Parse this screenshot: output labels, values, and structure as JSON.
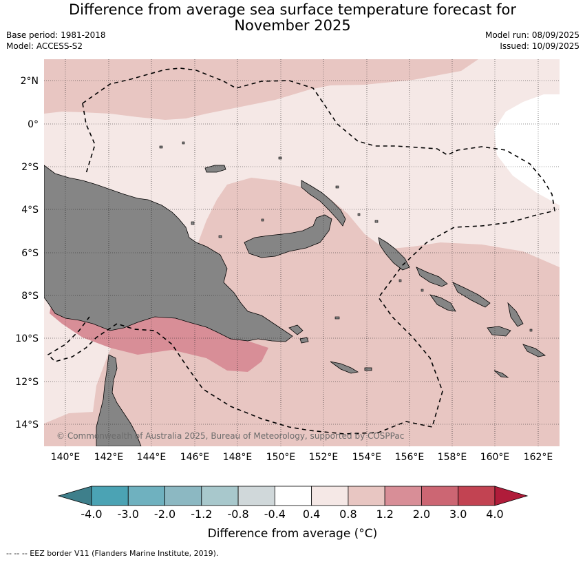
{
  "title": {
    "line1": "Difference from average sea surface temperature forecast for",
    "line2": "November 2025"
  },
  "meta": {
    "base_period": "Base period: 1981-2018",
    "model": "Model: ACCESS-S2",
    "model_run": "Model run: 08/09/2025",
    "issued": "Issued: 10/09/2025"
  },
  "map": {
    "lon_labels": [
      "140°E",
      "142°E",
      "144°E",
      "146°E",
      "148°E",
      "150°E",
      "152°E",
      "154°E",
      "156°E",
      "158°E",
      "160°E",
      "162°E"
    ],
    "lat_labels": [
      "2°N",
      "0°",
      "2°S",
      "4°S",
      "6°S",
      "8°S",
      "10°S",
      "12°S",
      "14°S"
    ],
    "credit": "© Commonwealth of Australia 2025, Bureau of Meteorology, supported by COSPPac",
    "colors": {
      "land": "#858585",
      "anomaly_0_4_0_8": "#f5e8e6",
      "anomaly_0_8_1_2": "#e8c6c2",
      "anomaly_1_2_2_0": "#d88e97",
      "neutral": "#ffffff",
      "eez_border": "#000000"
    }
  },
  "colorbar": {
    "title": "Difference from average (°C)",
    "tick_labels": [
      "-4.0",
      "-3.0",
      "-2.0",
      "-1.2",
      "-0.8",
      "-0.4",
      "0.4",
      "0.8",
      "1.2",
      "2.0",
      "3.0",
      "4.0"
    ],
    "colors": [
      "#3e7f8b",
      "#4ba3b4",
      "#6fb1bf",
      "#8cb8c2",
      "#a8c8cc",
      "#d0d8da",
      "#ffffff",
      "#f5e8e6",
      "#e8c6c2",
      "#d88e97",
      "#cc6673",
      "#c24352",
      "#b01c3a"
    ]
  },
  "footnote": "--  --  -- EEZ border V11 (Flanders Marine Institute, 2019)."
}
